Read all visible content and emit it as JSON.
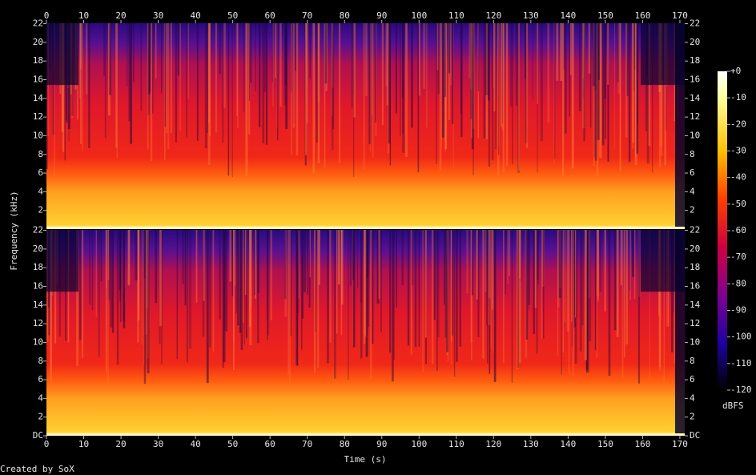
{
  "chart_data": {
    "type": "spectrogram",
    "xlabel": "Time (s)",
    "ylabel": "Frequency (kHz)",
    "credit": "Created by SoX",
    "xlim": [
      0,
      171.3
    ],
    "xticks": [
      0,
      10,
      20,
      30,
      40,
      50,
      60,
      70,
      80,
      90,
      100,
      110,
      120,
      130,
      140,
      150,
      160,
      170
    ],
    "channels": [
      {
        "ylim": [
          0,
          22.05
        ],
        "yticks": [
          2,
          4,
          6,
          8,
          10,
          12,
          14,
          16,
          18,
          20,
          22
        ]
      },
      {
        "ylim": [
          0,
          22.05
        ],
        "yticks": [
          {
            "value": 0,
            "label": "DC"
          },
          2,
          4,
          6,
          8,
          10,
          12,
          14,
          16,
          18,
          20,
          22
        ]
      }
    ],
    "colorbar": {
      "label": "dBFS",
      "zlim": [
        -120,
        0
      ],
      "zticks": [
        {
          "value": 0,
          "label": "+0"
        },
        -10,
        -20,
        -30,
        -40,
        -50,
        -60,
        -70,
        -80,
        -90,
        -100,
        -110,
        -120
      ]
    }
  }
}
